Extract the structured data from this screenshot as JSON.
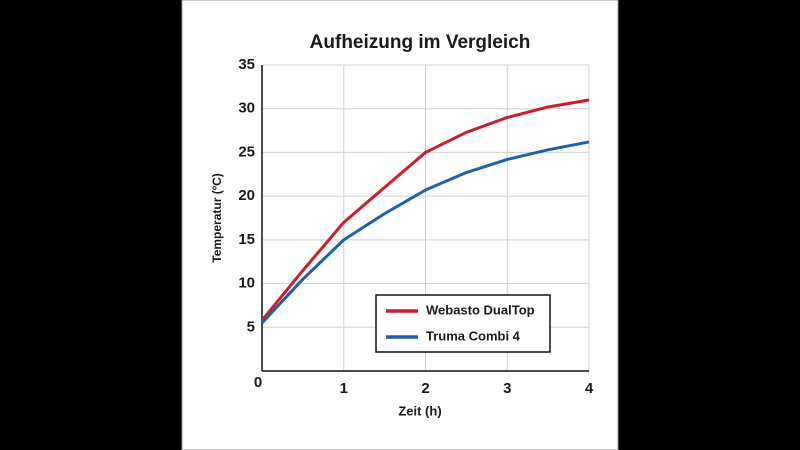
{
  "chart_data": {
    "type": "line",
    "title": "Aufheizung im Vergleich",
    "x_label": "Zeit (h)",
    "y_label": "Temperatur (ºC)",
    "x": [
      0,
      0.5,
      1,
      1.5,
      2,
      2.5,
      3,
      3.5,
      4
    ],
    "series": [
      {
        "name": "Webasto DualTop",
        "color": "#c8202a",
        "values": [
          5.8,
          11.5,
          17,
          21,
          25,
          27.3,
          29,
          30.2,
          31
        ]
      },
      {
        "name": "Truma Combi 4",
        "color": "#1f5fae",
        "values": [
          5.5,
          10.5,
          15,
          18,
          20.7,
          22.7,
          24.2,
          25.3,
          26.2
        ]
      }
    ],
    "xlim": [
      0,
      4
    ],
    "ylim": [
      0,
      35
    ],
    "xticks": [
      0,
      1,
      2,
      3,
      4
    ],
    "yticks": [
      0,
      5,
      10,
      15,
      20,
      25,
      30,
      35
    ],
    "grid": true,
    "legend": "lower-right"
  }
}
